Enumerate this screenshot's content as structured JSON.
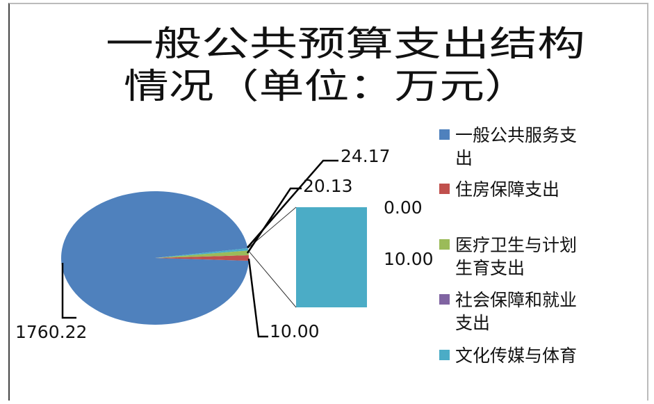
{
  "chart_data": {
    "type": "pie",
    "subtype": "pie-of-bar",
    "title_lines": [
      "一般公共预算支出结构",
      "情况（单位：万元）"
    ],
    "series": [
      {
        "name": "一般公共服务支出",
        "value": 1760.22,
        "label": "1760.22",
        "color": "#4F81BD",
        "legend_lines": [
          "一般公共服务支",
          "出"
        ]
      },
      {
        "name": "住房保障支出",
        "value": 24.17,
        "label": "24.17",
        "color": "#C0504D",
        "legend_lines": [
          "住房保障支出"
        ]
      },
      {
        "name": "医疗卫生与计划生育支出",
        "value": 20.13,
        "label": "20.13",
        "color": "#9BBB59",
        "legend_lines": [
          "医疗卫生与计划",
          "生育支出"
        ]
      },
      {
        "name": "社会保障和就业支出",
        "value": 0.0,
        "label": "0.00",
        "color": "#8064A2",
        "legend_lines": [
          "社会保障和就业",
          "支出"
        ]
      },
      {
        "name": "文化传媒与体育",
        "value": 10.0,
        "label": "10.00",
        "color": "#4BACC6",
        "legend_lines": [
          "文化传媒与体育"
        ]
      }
    ],
    "other_label": "10.00",
    "legend_position": "right"
  }
}
